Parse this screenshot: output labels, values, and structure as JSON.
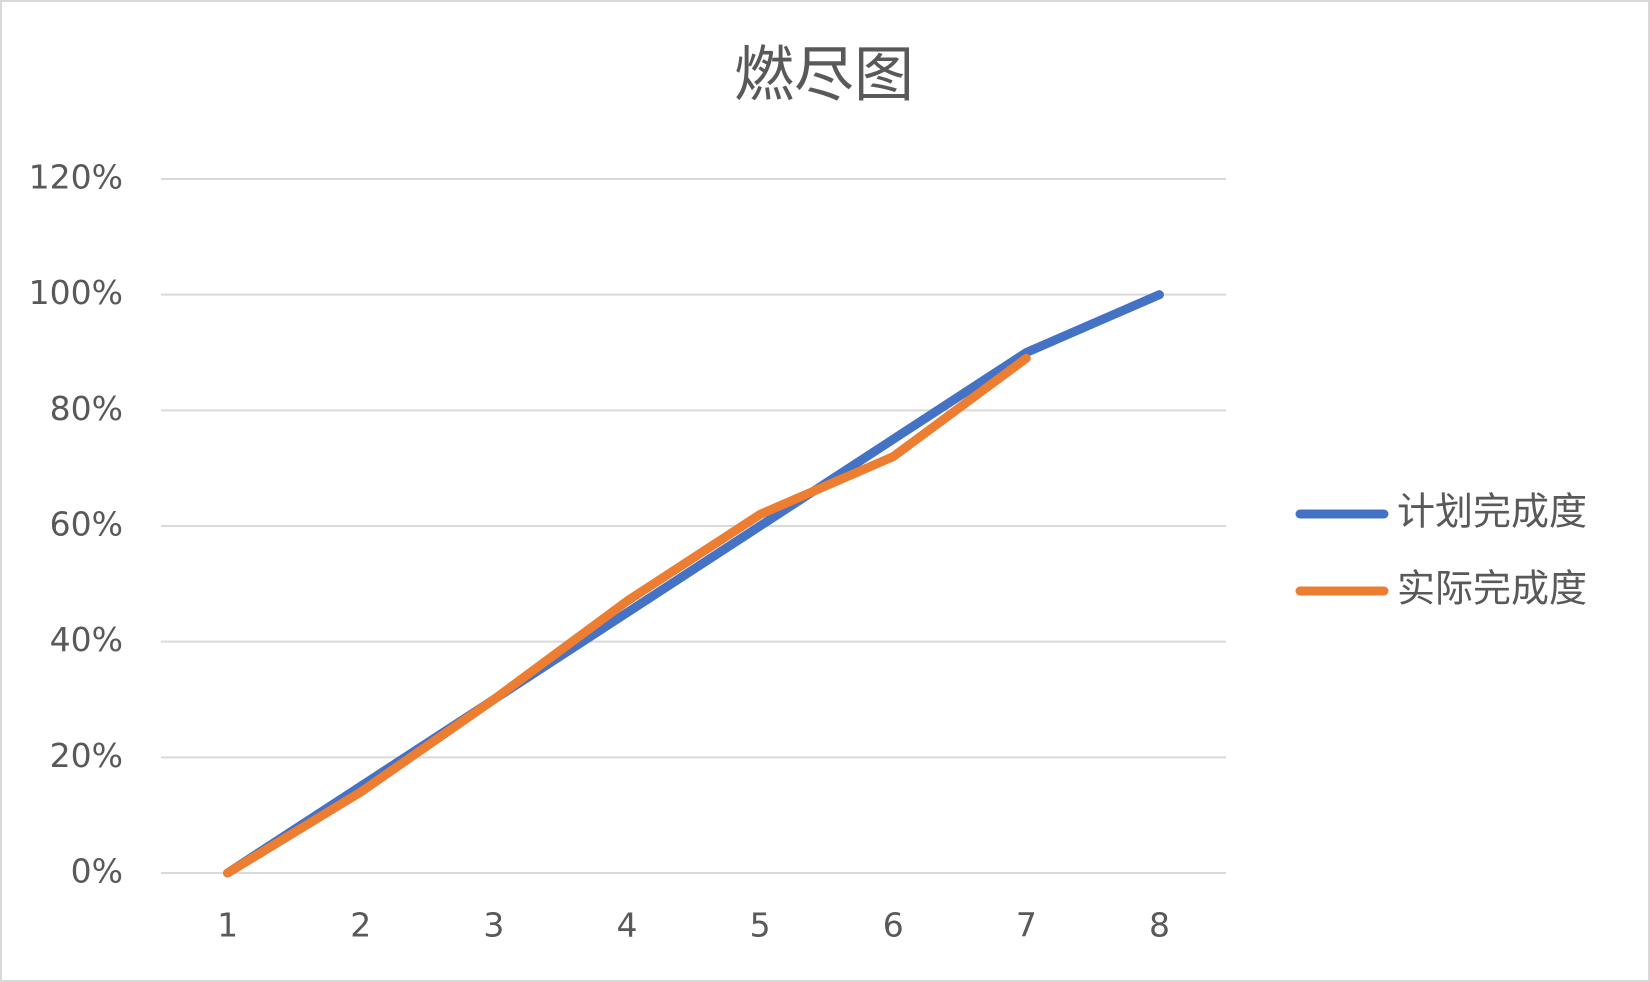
{
  "chart_data": {
    "type": "line",
    "title": "燃尽图",
    "categories": [
      "1",
      "2",
      "3",
      "4",
      "5",
      "6",
      "7",
      "8"
    ],
    "series": [
      {
        "name": "计划完成度",
        "color": "#4472c4",
        "values": [
          0,
          15,
          30,
          45,
          60,
          75,
          90,
          100
        ]
      },
      {
        "name": "实际完成度",
        "color": "#ed7d31",
        "values": [
          0,
          14,
          30,
          47,
          62,
          72,
          89,
          null
        ]
      }
    ],
    "ylim": [
      0,
      120
    ],
    "yticks": [
      {
        "value": 0,
        "label": "0%"
      },
      {
        "value": 20,
        "label": "20%"
      },
      {
        "value": 40,
        "label": "40%"
      },
      {
        "value": 60,
        "label": "60%"
      },
      {
        "value": 80,
        "label": "80%"
      },
      {
        "value": 100,
        "label": "100%"
      },
      {
        "value": 120,
        "label": "120%"
      }
    ],
    "grid": true,
    "legend": "right"
  }
}
